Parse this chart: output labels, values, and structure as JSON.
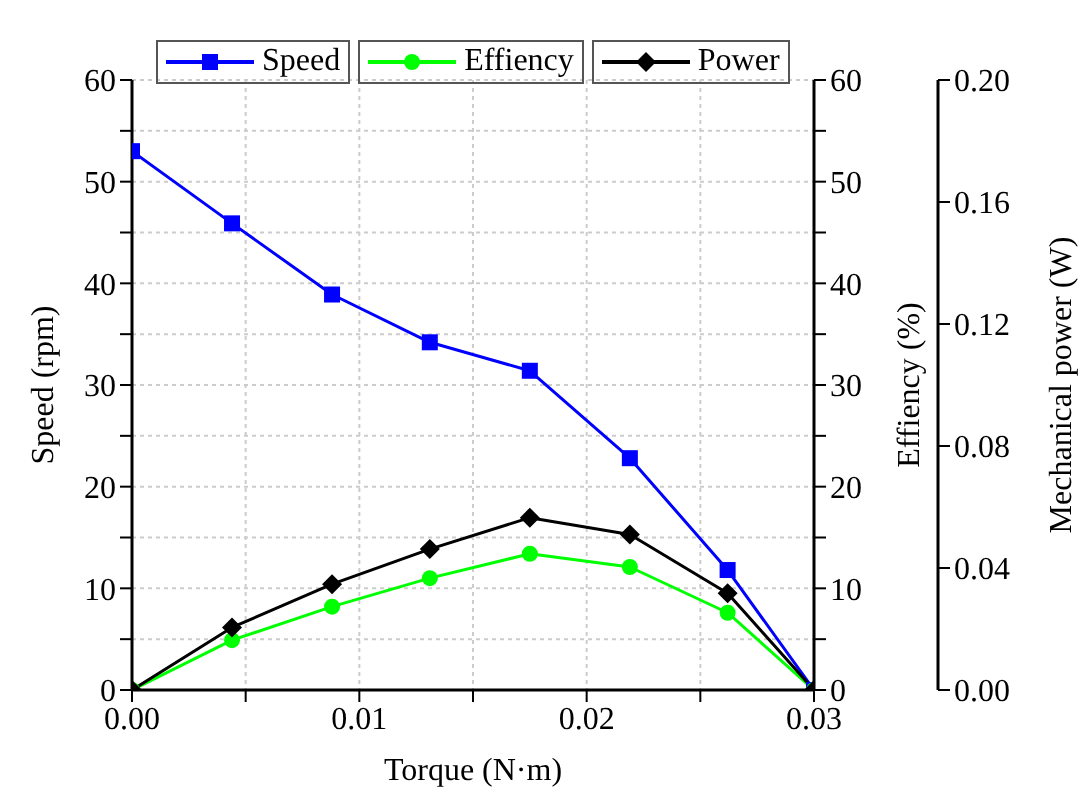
{
  "chart_data": {
    "type": "line",
    "xlabel": "Torque (N·m)",
    "ylabel": "Speed (rpm)",
    "y2label": "Effiency (%)",
    "y3label": "Mechanical power (W)",
    "x": [
      0,
      0.0044,
      0.0088,
      0.0131,
      0.0175,
      0.0219,
      0.0262,
      0.03
    ],
    "series": [
      {
        "name": "Speed",
        "color": "#0000ff",
        "marker": "square",
        "values": [
          53,
          45.9,
          38.9,
          34.2,
          31.4,
          22.8,
          11.8,
          0
        ]
      },
      {
        "name": "Effiency",
        "color": "#00ff00",
        "marker": "circle",
        "axis": "y2",
        "values": [
          0,
          4.9,
          8.2,
          11.0,
          13.4,
          12.1,
          7.6,
          0
        ]
      },
      {
        "name": "Power",
        "color": "#000000",
        "marker": "diamond",
        "axis": "y3",
        "values": [
          0,
          0.0205,
          0.0347,
          0.0462,
          0.0565,
          0.051,
          0.0317,
          0
        ]
      }
    ],
    "xlim": [
      0,
      0.03
    ],
    "xticks": [
      {
        "value": 0,
        "label": "0.00"
      },
      {
        "value": 0.005,
        "label": null
      },
      {
        "value": 0.01,
        "label": "0.01"
      },
      {
        "value": 0.015,
        "label": null
      },
      {
        "value": 0.02,
        "label": "0.02"
      },
      {
        "value": 0.025,
        "label": null
      },
      {
        "value": 0.03,
        "label": "0.03"
      }
    ],
    "ylim": [
      0,
      60
    ],
    "yticks": [
      0,
      {
        "value": 5,
        "label": null
      },
      10,
      {
        "value": 15,
        "label": null
      },
      20,
      {
        "value": 25,
        "label": null
      },
      30,
      {
        "value": 35,
        "label": null
      },
      40,
      {
        "value": 45,
        "label": null
      },
      50,
      {
        "value": 55,
        "label": null
      },
      60
    ],
    "y2lim": [
      0,
      60
    ],
    "y2ticks": [
      0,
      {
        "value": 5,
        "label": null
      },
      10,
      {
        "value": 15,
        "label": null
      },
      20,
      {
        "value": 25,
        "label": null
      },
      30,
      {
        "value": 35,
        "label": null
      },
      40,
      {
        "value": 45,
        "label": null
      },
      50,
      {
        "value": 55,
        "label": null
      },
      60
    ],
    "y3lim": [
      0,
      0.2
    ],
    "y3ticks": [
      {
        "value": 0,
        "label": "0.00"
      },
      {
        "value": 0.04,
        "label": "0.04"
      },
      {
        "value": 0.08,
        "label": "0.08"
      },
      {
        "value": 0.12,
        "label": "0.12"
      },
      {
        "value": 0.16,
        "label": "0.16"
      },
      {
        "value": 0.2,
        "label": "0.20"
      }
    ],
    "grid": true,
    "legend": "top",
    "line_style": "solid"
  }
}
